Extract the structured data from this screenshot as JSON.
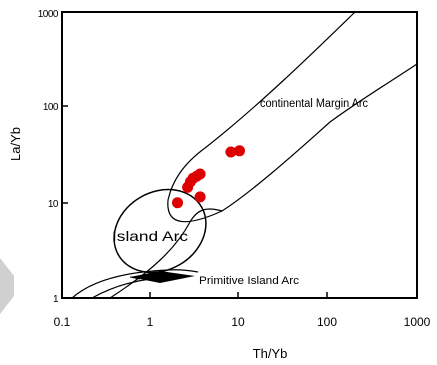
{
  "chart_data": {
    "type": "scatter",
    "title": "",
    "xlabel": "Th/Yb",
    "ylabel": "La/Yb",
    "xscale": "log",
    "yscale": "log",
    "xlim": [
      0.1,
      1000
    ],
    "ylim": [
      1,
      1000
    ],
    "x_ticks": [
      "0.1",
      "1",
      "10",
      "100",
      "1000"
    ],
    "y_ticks": [
      "1",
      "10",
      "100",
      "1000"
    ],
    "grid": false,
    "marker_color": "#dd0000",
    "series": [
      {
        "points": [
          {
            "x": 2.0,
            "y": 10.0
          },
          {
            "x": 2.6,
            "y": 14.5
          },
          {
            "x": 2.8,
            "y": 16.5
          },
          {
            "x": 3.0,
            "y": 18.0
          },
          {
            "x": 3.3,
            "y": 19.0
          },
          {
            "x": 3.6,
            "y": 20.0
          },
          {
            "x": 3.6,
            "y": 11.5
          },
          {
            "x": 8.0,
            "y": 34.0
          },
          {
            "x": 10.0,
            "y": 35.0
          }
        ]
      }
    ],
    "fields": [
      {
        "label": "continental Margin Arc"
      },
      {
        "label": "Island Arc"
      },
      {
        "label": "Primitive Island Arc"
      }
    ]
  }
}
